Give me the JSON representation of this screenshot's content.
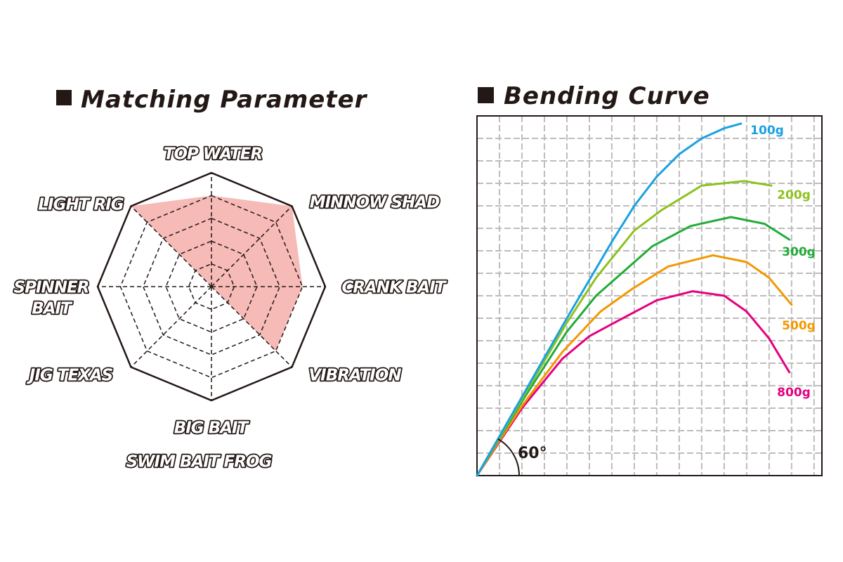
{
  "chart_data": [
    {
      "type": "radar",
      "title": "Matching Parameter",
      "categories": [
        [
          "TOP WATER"
        ],
        [
          "MINNOW SHAD"
        ],
        [
          "CRANK BAIT"
        ],
        [
          "VIBRATION"
        ],
        [
          "BIG BAIT",
          "SWIM BAIT  FROG"
        ],
        [
          "JIG  TEXAS"
        ],
        [
          "SPINNER",
          "BAIT"
        ],
        [
          "LIGHT RIG"
        ]
      ],
      "values": [
        4,
        5,
        4,
        4,
        0,
        0,
        0,
        5
      ],
      "rlim": [
        0,
        5
      ],
      "rticks": [
        1,
        2,
        3,
        4,
        5
      ],
      "color": "#f4a9a5"
    },
    {
      "type": "line",
      "title": "Bending Curve",
      "xlim": [
        0,
        15.35
      ],
      "ylim": [
        0,
        16
      ],
      "xticks": [
        1,
        2,
        3,
        4,
        5,
        6,
        7,
        8,
        9,
        10,
        11,
        12,
        13,
        14,
        15
      ],
      "yticks": [
        1,
        2,
        3,
        4,
        5,
        6,
        7,
        8,
        9,
        10,
        11,
        12,
        13,
        14,
        15
      ],
      "grid": true,
      "annotation": "60°",
      "series": [
        {
          "name": "100g",
          "color": "#1ba1e2",
          "x": [
            0,
            2,
            4,
            6,
            7,
            8,
            9,
            10,
            11,
            11.75
          ],
          "values": [
            0,
            3.5,
            7,
            10.4,
            12,
            13.3,
            14.3,
            15,
            15.45,
            15.66
          ]
        },
        {
          "name": "200g",
          "color": "#8dc21f",
          "x": [
            0,
            2,
            4,
            5.3,
            7,
            8.2,
            10,
            11.9,
            13.1
          ],
          "values": [
            0,
            3.4,
            6.8,
            8.8,
            10.9,
            11.8,
            12.9,
            13.1,
            12.9
          ]
        },
        {
          "name": "300g",
          "color": "#22ac38",
          "x": [
            0,
            2,
            4,
            5.3,
            7.8,
            9.5,
            11.3,
            12.8,
            13.9
          ],
          "values": [
            0,
            3.3,
            6.4,
            8,
            10.2,
            11.1,
            11.5,
            11.2,
            10.5
          ]
        },
        {
          "name": "500g",
          "color": "#f39800",
          "x": [
            0,
            2,
            3.8,
            5.5,
            6.9,
            8.5,
            10.5,
            12,
            13,
            14
          ],
          "values": [
            0,
            3.1,
            5.5,
            7.3,
            8.3,
            9.3,
            9.8,
            9.5,
            8.8,
            7.6
          ]
        },
        {
          "name": "800g",
          "color": "#e4007f",
          "x": [
            0,
            2,
            3.8,
            5,
            6.3,
            8,
            9.6,
            11,
            12,
            13,
            13.9
          ],
          "values": [
            0,
            3,
            5.2,
            6.2,
            6.9,
            7.8,
            8.2,
            8,
            7.3,
            6.1,
            4.6
          ]
        }
      ]
    }
  ]
}
